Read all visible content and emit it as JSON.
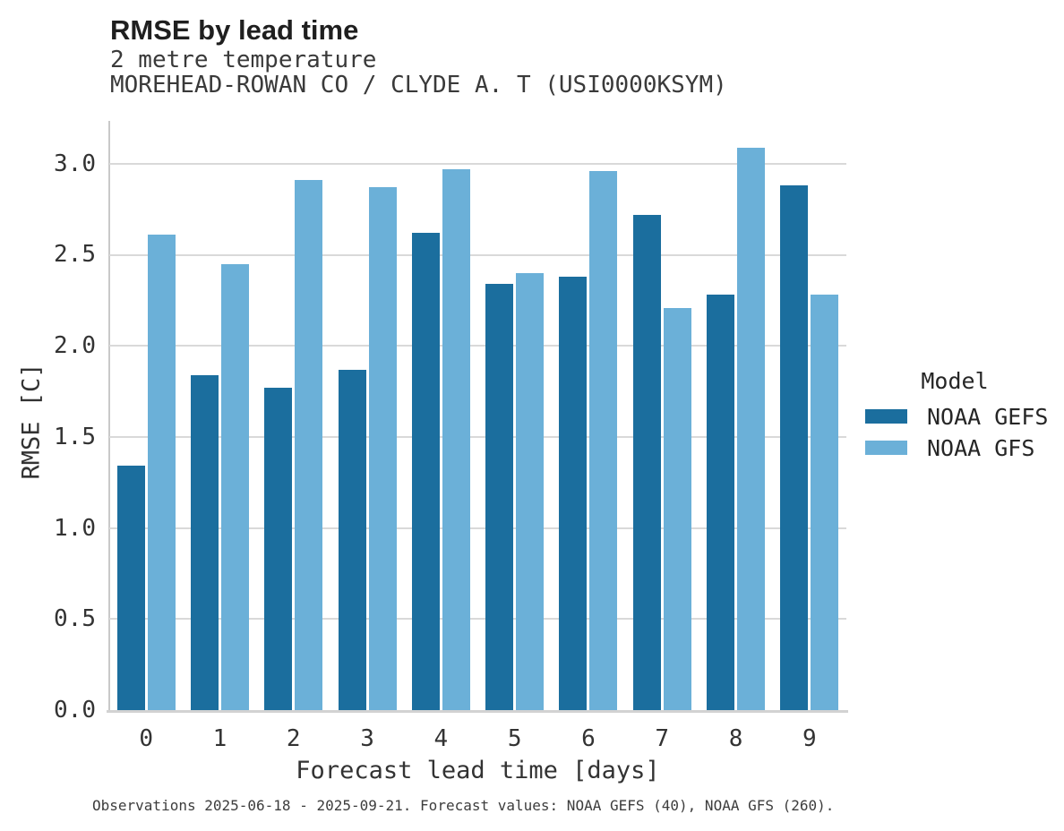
{
  "chart_data": {
    "type": "bar",
    "title": "RMSE by lead time",
    "subtitle": [
      "2 metre temperature",
      "MOREHEAD-ROWAN CO / CLYDE A. T (USI0000KSYM)"
    ],
    "xlabel": "Forecast lead time [days]",
    "ylabel": "RMSE [C]",
    "categories": [
      "0",
      "1",
      "2",
      "3",
      "4",
      "5",
      "6",
      "7",
      "8",
      "9"
    ],
    "series": [
      {
        "name": "NOAA GEFS",
        "color": "#1b6e9e",
        "values": [
          1.34,
          1.84,
          1.77,
          1.87,
          2.62,
          2.34,
          2.38,
          2.72,
          2.28,
          2.88
        ]
      },
      {
        "name": "NOAA GFS",
        "color": "#6bb0d8",
        "values": [
          2.61,
          2.45,
          2.91,
          2.87,
          2.97,
          2.4,
          2.96,
          2.21,
          3.09,
          2.28
        ]
      }
    ],
    "ylim": [
      0,
      3.235
    ],
    "yticks": [
      0.0,
      0.5,
      1.0,
      1.5,
      2.0,
      2.5,
      3.0
    ],
    "grid": "horizontal",
    "legend_title": "Model",
    "legend_position": "right",
    "caption": "Observations 2025-06-18 - 2025-09-21. Forecast values: NOAA GEFS (40), NOAA GFS (260)."
  },
  "colors": {
    "grid": "#d9d9d9",
    "spine": "#c9c9c9",
    "background": "#ffffff"
  }
}
